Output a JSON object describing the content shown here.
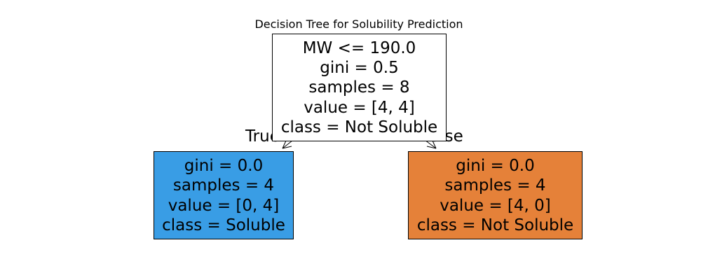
{
  "title": "Decision Tree for Solubility Prediction",
  "edge_labels": {
    "left": "True",
    "right": "False"
  },
  "nodes": [
    {
      "id": "root",
      "fill": "#ffffff",
      "lines": [
        "MW <= 190.0",
        "gini = 0.5",
        "samples = 8",
        "value = [4, 4]",
        "class = Not Soluble"
      ]
    },
    {
      "id": "left",
      "fill": "#399de5",
      "lines": [
        "gini = 0.0",
        "samples = 4",
        "value = [0, 4]",
        "class = Soluble"
      ]
    },
    {
      "id": "right",
      "fill": "#e58139",
      "lines": [
        "gini = 0.0",
        "samples = 4",
        "value = [4, 0]",
        "class = Not Soluble"
      ]
    }
  ],
  "colors": {
    "border": "#000000",
    "text": "#000000",
    "background": "#ffffff"
  }
}
